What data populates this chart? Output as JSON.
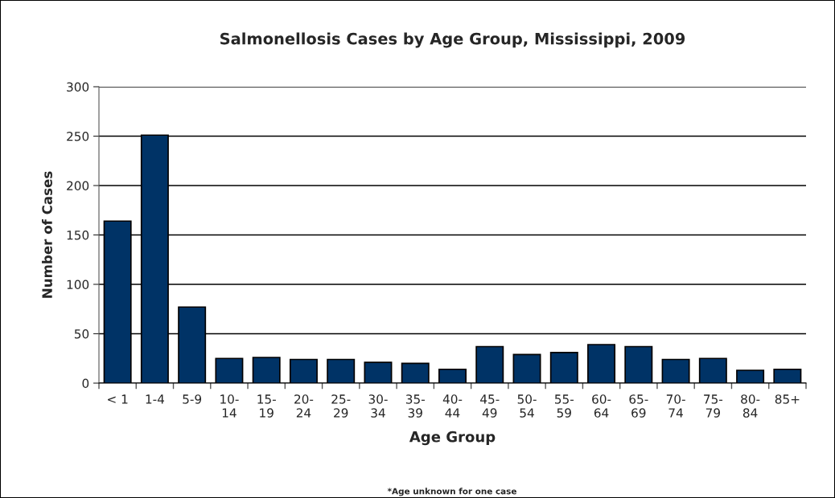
{
  "chart_data": {
    "type": "bar",
    "title": "Salmonellosis Cases by Age Group, Mississippi, 2009",
    "xlabel": "Age Group",
    "ylabel": "Number of Cases",
    "annotations": [
      "*Age unknown for one case"
    ],
    "categories": [
      "< 1",
      "1-4",
      "5-9",
      "10-\n14",
      "15-\n19",
      "20-\n24",
      "25-\n29",
      "30-\n34",
      "35-\n39",
      "40-\n44",
      "45-\n49",
      "50-\n54",
      "55-\n59",
      "60-\n64",
      "65-\n69",
      "70-\n74",
      "75-\n79",
      "80-\n84",
      "85+"
    ],
    "values": [
      164,
      251,
      77,
      25,
      26,
      24,
      24,
      21,
      20,
      14,
      37,
      29,
      31,
      39,
      37,
      24,
      25,
      13,
      14
    ],
    "color": "#003366",
    "ylim": [
      0,
      300
    ],
    "yticks": [
      0,
      50,
      100,
      150,
      200,
      250,
      300
    ],
    "grid": "y",
    "legend": false
  }
}
